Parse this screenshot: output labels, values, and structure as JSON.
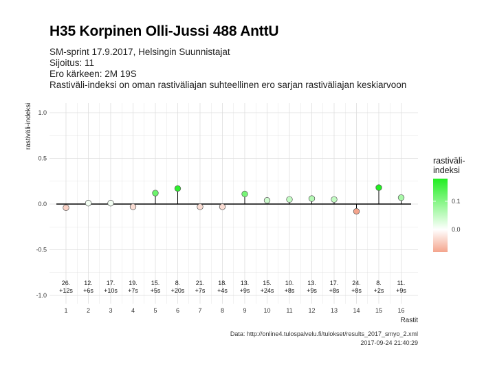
{
  "title": "H35 Korpinen Olli-Jussi 488 AnttU",
  "subtitle_lines": [
    "SM-sprint 17.9.2017, Helsingin Suunnistajat",
    "Sijoitus: 11",
    "Ero kärkeen: 2M 19S",
    "Rastiväli-indeksi on oman rastiväliajan suhteellinen ero sarjan rastiväliajan keskiarvoon"
  ],
  "caption_lines": [
    "Data: http://online4.tulospalvelu.fi/tulokset/results_2017_smyo_2.xml",
    "2017-09-24 21:40:29"
  ],
  "colors": {
    "positive": "#22ee22",
    "neutral": "#ffffff",
    "negative": "#f4a48c",
    "grid": "#dddddd",
    "axis_line": "#000000"
  },
  "chart_data": {
    "type": "scatter",
    "xlabel": "Rastit",
    "ylabel": "rastiväli-indeksi",
    "x": [
      1,
      2,
      3,
      4,
      5,
      6,
      7,
      8,
      9,
      10,
      11,
      12,
      13,
      14,
      15,
      16
    ],
    "values": [
      -0.04,
      0.01,
      0.01,
      -0.03,
      0.12,
      0.17,
      -0.03,
      -0.03,
      0.11,
      0.04,
      0.05,
      0.06,
      0.05,
      -0.08,
      0.18,
      0.07
    ],
    "point_labels": [
      [
        "26.",
        "+12s"
      ],
      [
        "12.",
        "+6s"
      ],
      [
        "17.",
        "+10s"
      ],
      [
        "19.",
        "+7s"
      ],
      [
        "15.",
        "+5s"
      ],
      [
        "8.",
        "+20s"
      ],
      [
        "21.",
        "+7s"
      ],
      [
        "18.",
        "+4s"
      ],
      [
        "13.",
        "+9s"
      ],
      [
        "15.",
        "+24s"
      ],
      [
        "10.",
        "+8s"
      ],
      [
        "13.",
        "+9s"
      ],
      [
        "17.",
        "+8s"
      ],
      [
        "24.",
        "+8s"
      ],
      [
        "8.",
        "+2s"
      ],
      [
        "11.",
        "+9s"
      ]
    ],
    "ylim": [
      -1.1,
      1.1
    ],
    "yticks": [
      1.0,
      0.5,
      0.0,
      -0.5,
      -1.0
    ],
    "ytick_labels": [
      "1.0",
      "0.5",
      "0.0",
      "-0.5",
      "-1.0"
    ],
    "grid": true,
    "baseline": 0,
    "legend": {
      "title": "rastiväli-\nindeksi",
      "ticks": [
        0.1,
        0.0
      ],
      "tick_labels": [
        "0.1",
        "0.0"
      ],
      "range": [
        -0.08,
        0.18
      ],
      "placement": "right"
    }
  }
}
